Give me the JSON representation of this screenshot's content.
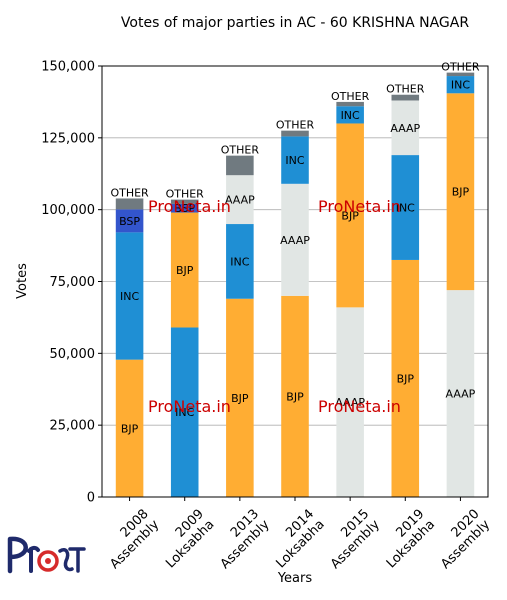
{
  "chart_data": {
    "type": "bar",
    "stacked": true,
    "title": "Votes of major parties in AC - 60 KRISHNA NAGAR",
    "xlabel": "Years",
    "ylabel": "Votes",
    "ylim": [
      0,
      150000
    ],
    "yticks": [
      0,
      25000,
      50000,
      75000,
      100000,
      125000,
      150000
    ],
    "ytick_labels": [
      "0",
      "25,000",
      "50,000",
      "75,000",
      "100,000",
      "125,000",
      "150,000"
    ],
    "grid": "horizontal",
    "categories": [
      [
        "2008",
        "Assembly"
      ],
      [
        "2009",
        "Loksabha"
      ],
      [
        "2013",
        "Assembly"
      ],
      [
        "2014",
        "Loksabha"
      ],
      [
        "2015",
        "Assembly"
      ],
      [
        "2019",
        "Loksabha"
      ],
      [
        "2020",
        "Assembly"
      ]
    ],
    "party_colors": {
      "BJP": "#ffad33",
      "INC": "#1f8fd4",
      "BSP": "#3355cc",
      "AAAP": "#e1e6e4",
      "OTHER": "#707a80"
    },
    "stacks": [
      [
        {
          "party": "BJP",
          "value": 47800
        },
        {
          "party": "INC",
          "value": 44300
        },
        {
          "party": "BSP",
          "value": 8000
        },
        {
          "party": "OTHER",
          "value": 3800
        }
      ],
      [
        {
          "party": "INC",
          "value": 59000
        },
        {
          "party": "BJP",
          "value": 40000
        },
        {
          "party": "BSP",
          "value": 3000
        },
        {
          "party": "OTHER",
          "value": 1500
        }
      ],
      [
        {
          "party": "BJP",
          "value": 69000
        },
        {
          "party": "INC",
          "value": 26000
        },
        {
          "party": "AAAP",
          "value": 17000
        },
        {
          "party": "OTHER",
          "value": 6800
        }
      ],
      [
        {
          "party": "BJP",
          "value": 70000
        },
        {
          "party": "AAAP",
          "value": 39000
        },
        {
          "party": "INC",
          "value": 16500
        },
        {
          "party": "OTHER",
          "value": 2000
        }
      ],
      [
        {
          "party": "AAAP",
          "value": 66000
        },
        {
          "party": "BJP",
          "value": 64000
        },
        {
          "party": "INC",
          "value": 6000
        },
        {
          "party": "OTHER",
          "value": 1500
        }
      ],
      [
        {
          "party": "BJP",
          "value": 82500
        },
        {
          "party": "INC",
          "value": 36500
        },
        {
          "party": "AAAP",
          "value": 19000
        },
        {
          "party": "OTHER",
          "value": 2000
        }
      ],
      [
        {
          "party": "AAAP",
          "value": 72000
        },
        {
          "party": "BJP",
          "value": 68500
        },
        {
          "party": "INC",
          "value": 6000
        },
        {
          "party": "OTHER",
          "value": 1200
        }
      ]
    ]
  },
  "watermark": "ProNeta.in",
  "logo_text": "ProNeta"
}
